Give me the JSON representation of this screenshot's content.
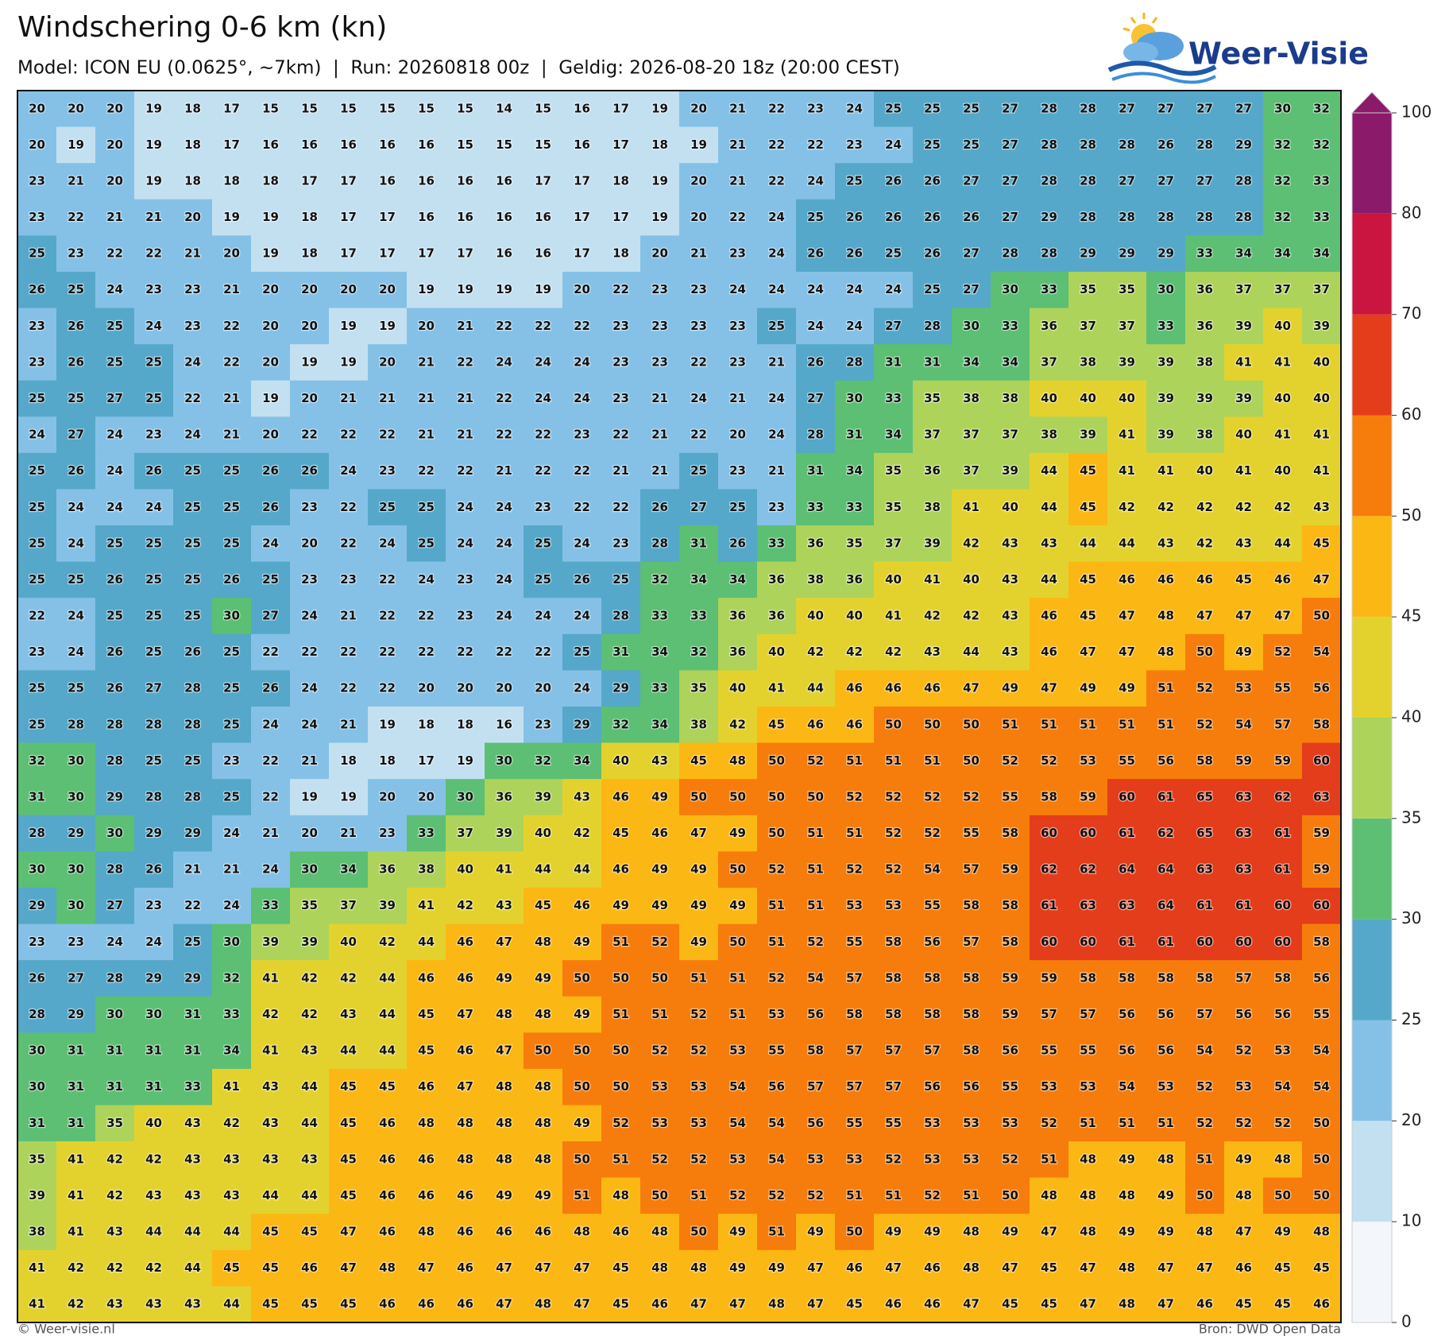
{
  "header": {
    "title": "Windschering 0-6 km (kn)",
    "subtitle": "Model: ICON EU (0.0625°, ~7km)  |  Run: 20260818 00z  |  Geldig: 2026-08-20 18z (20:00 CEST)",
    "logo": "Weer-Visie"
  },
  "grid": {
    "values": [
      [
        20,
        20,
        20,
        19,
        18,
        17,
        15,
        15,
        15,
        15,
        15,
        15,
        14,
        15,
        16,
        17,
        19,
        20,
        21,
        22,
        23,
        24,
        25,
        25,
        25,
        27,
        28,
        28,
        27,
        27,
        27,
        27,
        30,
        32
      ],
      [
        20,
        19,
        20,
        19,
        18,
        17,
        16,
        16,
        16,
        16,
        16,
        15,
        15,
        15,
        16,
        17,
        18,
        19,
        21,
        22,
        22,
        23,
        24,
        25,
        25,
        27,
        28,
        28,
        28,
        26,
        28,
        29,
        32,
        32
      ],
      [
        23,
        21,
        20,
        19,
        18,
        18,
        18,
        17,
        17,
        16,
        16,
        16,
        16,
        17,
        17,
        18,
        19,
        20,
        21,
        22,
        24,
        25,
        26,
        26,
        27,
        27,
        28,
        28,
        27,
        27,
        27,
        28,
        32,
        33
      ],
      [
        23,
        22,
        21,
        21,
        20,
        19,
        19,
        18,
        17,
        17,
        16,
        16,
        16,
        16,
        17,
        17,
        19,
        20,
        22,
        24,
        25,
        26,
        26,
        26,
        26,
        27,
        29,
        28,
        28,
        28,
        28,
        28,
        32,
        33
      ],
      [
        25,
        23,
        22,
        22,
        21,
        20,
        19,
        18,
        17,
        17,
        17,
        17,
        16,
        16,
        17,
        18,
        20,
        21,
        23,
        24,
        26,
        26,
        25,
        26,
        27,
        28,
        28,
        29,
        29,
        29,
        33,
        34,
        34,
        34
      ],
      [
        26,
        25,
        24,
        23,
        23,
        21,
        20,
        20,
        20,
        20,
        19,
        19,
        19,
        19,
        20,
        22,
        23,
        23,
        24,
        24,
        24,
        24,
        24,
        25,
        27,
        30,
        33,
        35,
        35,
        30,
        36,
        37,
        37,
        37
      ],
      [
        23,
        26,
        25,
        24,
        23,
        22,
        20,
        20,
        19,
        19,
        20,
        21,
        22,
        22,
        22,
        23,
        23,
        23,
        23,
        25,
        24,
        24,
        27,
        28,
        30,
        33,
        36,
        37,
        37,
        33,
        36,
        39,
        40,
        39
      ],
      [
        23,
        26,
        25,
        25,
        24,
        22,
        20,
        19,
        19,
        20,
        21,
        22,
        24,
        24,
        24,
        23,
        23,
        22,
        23,
        21,
        26,
        28,
        31,
        31,
        34,
        34,
        37,
        38,
        39,
        39,
        38,
        41,
        41,
        40
      ],
      [
        25,
        25,
        27,
        25,
        22,
        21,
        19,
        20,
        21,
        21,
        21,
        21,
        22,
        24,
        24,
        23,
        21,
        24,
        21,
        24,
        27,
        30,
        33,
        35,
        38,
        38,
        40,
        40,
        40,
        39,
        39,
        39,
        40,
        40
      ],
      [
        24,
        27,
        24,
        23,
        24,
        21,
        20,
        22,
        22,
        22,
        21,
        21,
        22,
        22,
        23,
        22,
        21,
        22,
        20,
        24,
        28,
        31,
        34,
        37,
        37,
        37,
        38,
        39,
        41,
        39,
        38,
        40,
        41,
        41
      ],
      [
        25,
        26,
        24,
        26,
        25,
        25,
        26,
        26,
        24,
        23,
        22,
        22,
        21,
        22,
        22,
        21,
        21,
        25,
        23,
        21,
        31,
        34,
        35,
        36,
        37,
        39,
        44,
        45,
        41,
        41,
        40,
        41,
        40,
        41
      ],
      [
        25,
        24,
        24,
        24,
        25,
        25,
        26,
        23,
        22,
        25,
        25,
        24,
        24,
        23,
        22,
        22,
        26,
        27,
        25,
        23,
        33,
        33,
        35,
        38,
        41,
        40,
        44,
        45,
        42,
        42,
        42,
        42,
        42,
        43
      ],
      [
        25,
        24,
        25,
        25,
        25,
        25,
        24,
        20,
        22,
        24,
        25,
        24,
        24,
        25,
        24,
        23,
        28,
        31,
        26,
        33,
        36,
        35,
        37,
        39,
        42,
        43,
        43,
        44,
        44,
        43,
        42,
        43,
        44,
        45
      ],
      [
        25,
        25,
        26,
        25,
        25,
        26,
        25,
        23,
        23,
        22,
        24,
        23,
        24,
        25,
        26,
        25,
        32,
        34,
        34,
        36,
        38,
        36,
        40,
        41,
        40,
        43,
        44,
        45,
        46,
        46,
        46,
        45,
        46,
        47
      ],
      [
        22,
        24,
        25,
        25,
        25,
        30,
        27,
        24,
        21,
        22,
        22,
        23,
        24,
        24,
        24,
        28,
        33,
        33,
        36,
        36,
        40,
        40,
        41,
        42,
        42,
        43,
        46,
        45,
        47,
        48,
        47,
        47,
        47,
        50
      ],
      [
        23,
        24,
        26,
        25,
        26,
        25,
        22,
        22,
        22,
        22,
        22,
        22,
        22,
        22,
        25,
        31,
        34,
        32,
        36,
        40,
        42,
        42,
        42,
        43,
        44,
        43,
        46,
        47,
        47,
        48,
        50,
        49,
        52,
        54
      ],
      [
        25,
        25,
        26,
        27,
        28,
        25,
        26,
        24,
        22,
        22,
        20,
        20,
        20,
        20,
        24,
        29,
        33,
        35,
        40,
        41,
        44,
        46,
        46,
        46,
        47,
        49,
        47,
        49,
        49,
        51,
        52,
        53,
        55,
        56
      ],
      [
        25,
        28,
        28,
        28,
        28,
        25,
        24,
        24,
        21,
        19,
        18,
        18,
        16,
        23,
        29,
        32,
        34,
        38,
        42,
        45,
        46,
        46,
        50,
        50,
        50,
        51,
        51,
        51,
        51,
        51,
        52,
        54,
        57,
        58
      ],
      [
        32,
        30,
        28,
        25,
        25,
        23,
        22,
        21,
        18,
        18,
        17,
        19,
        30,
        32,
        34,
        40,
        43,
        45,
        48,
        50,
        52,
        51,
        51,
        51,
        50,
        52,
        52,
        53,
        55,
        56,
        58,
        59,
        59,
        60
      ],
      [
        31,
        30,
        29,
        28,
        28,
        25,
        22,
        19,
        19,
        20,
        20,
        30,
        36,
        39,
        43,
        46,
        49,
        50,
        50,
        50,
        50,
        52,
        52,
        52,
        52,
        55,
        58,
        59,
        60,
        61,
        65,
        63,
        62,
        63
      ],
      [
        28,
        29,
        30,
        29,
        29,
        24,
        21,
        20,
        21,
        23,
        33,
        37,
        39,
        40,
        42,
        45,
        46,
        47,
        49,
        50,
        51,
        51,
        52,
        52,
        55,
        58,
        60,
        60,
        61,
        62,
        65,
        63,
        61,
        59
      ],
      [
        30,
        30,
        28,
        26,
        21,
        21,
        24,
        30,
        34,
        36,
        38,
        40,
        41,
        44,
        44,
        46,
        49,
        49,
        50,
        52,
        51,
        52,
        52,
        54,
        57,
        59,
        62,
        62,
        64,
        64,
        63,
        63,
        61,
        59
      ],
      [
        29,
        30,
        27,
        23,
        22,
        24,
        33,
        35,
        37,
        39,
        41,
        42,
        43,
        45,
        46,
        49,
        49,
        49,
        49,
        51,
        51,
        53,
        53,
        55,
        58,
        58,
        61,
        63,
        63,
        64,
        61,
        61,
        60,
        60
      ],
      [
        23,
        23,
        24,
        24,
        25,
        30,
        39,
        39,
        40,
        42,
        44,
        46,
        47,
        48,
        49,
        51,
        52,
        49,
        50,
        51,
        52,
        55,
        58,
        56,
        57,
        58,
        60,
        60,
        61,
        61,
        60,
        60,
        60,
        58
      ],
      [
        26,
        27,
        28,
        29,
        29,
        32,
        41,
        42,
        42,
        44,
        46,
        46,
        49,
        49,
        50,
        50,
        50,
        51,
        51,
        52,
        54,
        57,
        58,
        58,
        58,
        59,
        59,
        58,
        58,
        58,
        58,
        57,
        58,
        56
      ],
      [
        28,
        29,
        30,
        30,
        31,
        33,
        42,
        42,
        43,
        44,
        45,
        47,
        48,
        48,
        49,
        51,
        51,
        52,
        51,
        53,
        56,
        58,
        58,
        58,
        58,
        59,
        57,
        57,
        56,
        56,
        57,
        56,
        56,
        55
      ],
      [
        30,
        31,
        31,
        31,
        31,
        34,
        41,
        43,
        44,
        44,
        45,
        46,
        47,
        50,
        50,
        50,
        52,
        52,
        53,
        55,
        58,
        57,
        57,
        57,
        58,
        56,
        55,
        55,
        56,
        56,
        54,
        52,
        53,
        54
      ],
      [
        30,
        31,
        31,
        31,
        33,
        41,
        43,
        44,
        45,
        45,
        46,
        47,
        48,
        48,
        50,
        50,
        53,
        53,
        54,
        56,
        57,
        57,
        57,
        56,
        56,
        55,
        53,
        53,
        54,
        53,
        52,
        53,
        54,
        54
      ],
      [
        31,
        31,
        35,
        40,
        43,
        42,
        43,
        44,
        45,
        46,
        48,
        48,
        48,
        48,
        49,
        52,
        53,
        53,
        54,
        54,
        56,
        55,
        55,
        53,
        53,
        53,
        52,
        51,
        51,
        51,
        52,
        52,
        52,
        50
      ],
      [
        35,
        41,
        42,
        42,
        43,
        43,
        43,
        43,
        45,
        46,
        46,
        48,
        48,
        48,
        50,
        51,
        52,
        52,
        53,
        54,
        53,
        53,
        52,
        53,
        53,
        52,
        51,
        48,
        49,
        48,
        51,
        49,
        48,
        50
      ],
      [
        39,
        41,
        42,
        43,
        43,
        43,
        44,
        44,
        45,
        46,
        46,
        46,
        49,
        49,
        51,
        48,
        50,
        51,
        52,
        52,
        52,
        51,
        51,
        52,
        51,
        50,
        48,
        48,
        48,
        49,
        50,
        48,
        50,
        50
      ],
      [
        38,
        41,
        43,
        44,
        44,
        44,
        45,
        45,
        47,
        46,
        48,
        46,
        46,
        46,
        48,
        46,
        48,
        50,
        49,
        51,
        49,
        50,
        49,
        49,
        48,
        49,
        47,
        48,
        49,
        49,
        48,
        47,
        49,
        48
      ],
      [
        41,
        42,
        42,
        42,
        44,
        45,
        45,
        46,
        47,
        48,
        47,
        46,
        47,
        47,
        47,
        45,
        48,
        48,
        49,
        49,
        47,
        46,
        47,
        46,
        48,
        47,
        45,
        47,
        48,
        47,
        47,
        46,
        45,
        45
      ],
      [
        41,
        42,
        43,
        43,
        43,
        44,
        45,
        45,
        45,
        46,
        46,
        46,
        47,
        48,
        47,
        45,
        46,
        47,
        47,
        48,
        47,
        45,
        46,
        46,
        47,
        45,
        45,
        47,
        48,
        47,
        46,
        45,
        45,
        46
      ]
    ]
  },
  "colorbar": {
    "ticks": [
      0,
      10,
      20,
      25,
      30,
      35,
      40,
      45,
      50,
      60,
      70,
      80,
      100
    ],
    "colors": [
      "#f3f6fa",
      "#c3e0f1",
      "#85c1e6",
      "#55a8c9",
      "#5cbf73",
      "#add35a",
      "#e3d22e",
      "#fbb714",
      "#f67d0b",
      "#e33d1b",
      "#c9153f",
      "#8c1a6a"
    ]
  },
  "footer": {
    "left": "© Weer-visie.nl",
    "right": "Bron: DWD Open Data"
  }
}
